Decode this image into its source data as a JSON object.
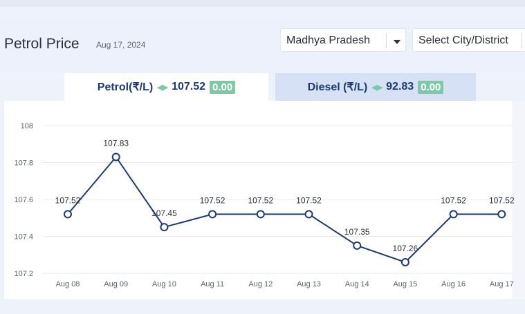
{
  "header": {
    "title": "Petrol Price",
    "date": "Aug 17, 2024",
    "state_select": "Madhya Pradesh",
    "city_select": "Select City/District"
  },
  "tabs": [
    {
      "fuel": "Petrol(₹/L)",
      "price": "107.52",
      "change": "0.00"
    },
    {
      "fuel": "Diesel (₹/L)",
      "price": "92.83",
      "change": "0.00"
    }
  ],
  "colors": {
    "line": "#1f3b6b",
    "badge": "#7fc7a8",
    "active_tab": "#ffffff",
    "inactive_tab": "#d6e1f6"
  },
  "chart_data": {
    "type": "line",
    "categories": [
      "Aug 08",
      "Aug 09",
      "Aug 10",
      "Aug 11",
      "Aug 12",
      "Aug 13",
      "Aug 14",
      "Aug 15",
      "Aug 16",
      "Aug 17"
    ],
    "series": [
      {
        "values": [
          107.52,
          107.83,
          107.45,
          107.52,
          107.52,
          107.52,
          107.35,
          107.26,
          107.52,
          107.52
        ]
      }
    ],
    "data_labels": [
      "107.52",
      "107.83",
      "107.45",
      "107.52",
      "107.52",
      "107.52",
      "107.35",
      "107.26",
      "107.52",
      "107.52"
    ],
    "yticks": [
      107.2,
      107.4,
      107.6,
      107.8,
      108
    ],
    "ytick_labels": [
      "107.2",
      "107.4",
      "107.6",
      "107.8",
      "108"
    ],
    "ylim": [
      107.2,
      108
    ],
    "grid": true,
    "legend": false
  }
}
